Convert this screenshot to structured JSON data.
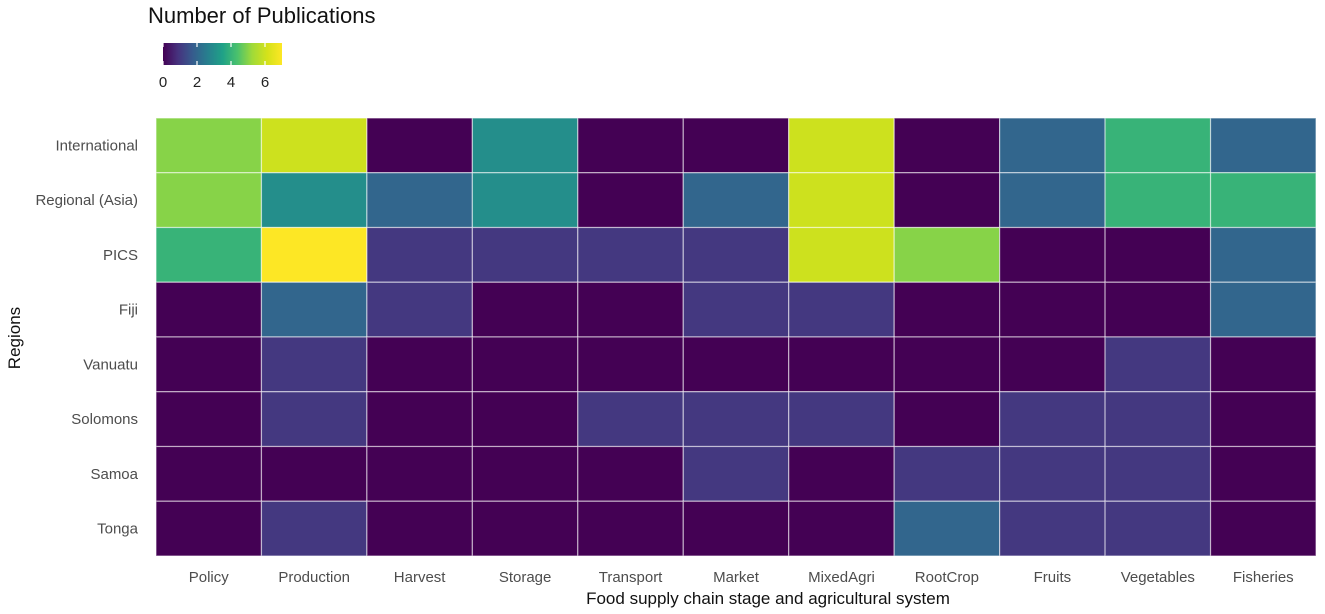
{
  "chart_data": {
    "type": "heatmap",
    "title": "",
    "xlabel": "Food supply chain stage and agricultural system",
    "ylabel": "Regions",
    "x_categories": [
      "Policy",
      "Production",
      "Harvest",
      "Storage",
      "Transport",
      "Market",
      "MixedAgri",
      "RootCrop",
      "Fruits",
      "Vegetables",
      "Fisheries"
    ],
    "y_categories": [
      "International",
      "Regional (Asia)",
      "PICS",
      "Fiji",
      "Vanuatu",
      "Solomons",
      "Samoa",
      "Tonga"
    ],
    "values": [
      [
        5,
        6,
        0,
        3,
        0,
        0,
        6,
        0,
        2,
        4,
        2
      ],
      [
        5,
        3,
        2,
        3,
        0,
        2,
        6,
        0,
        2,
        4,
        4
      ],
      [
        4,
        7,
        1,
        1,
        1,
        1,
        6,
        5,
        0,
        0,
        2
      ],
      [
        0,
        2,
        1,
        0,
        0,
        1,
        1,
        0,
        0,
        0,
        2
      ],
      [
        0,
        1,
        0,
        0,
        0,
        0,
        0,
        0,
        0,
        1,
        0
      ],
      [
        0,
        1,
        0,
        0,
        1,
        1,
        1,
        0,
        1,
        1,
        0
      ],
      [
        0,
        0,
        0,
        0,
        0,
        1,
        0,
        1,
        1,
        1,
        0
      ],
      [
        0,
        1,
        0,
        0,
        0,
        0,
        0,
        2,
        1,
        1,
        0
      ]
    ],
    "colorscale": "viridis",
    "color_range": [
      0,
      7
    ],
    "legend": {
      "title": "Number of Publications",
      "ticks": [
        0,
        2,
        4,
        6
      ],
      "placement": "top-left"
    },
    "grid": false
  }
}
